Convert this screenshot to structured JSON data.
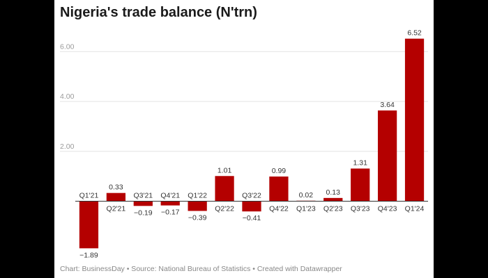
{
  "chart_data": {
    "type": "bar",
    "title": "Nigeria's trade balance (N'trn)",
    "categories": [
      "Q1'21",
      "Q2'21",
      "Q3'21",
      "Q4'21",
      "Q1'22",
      "Q2'22",
      "Q3'22",
      "Q4'22",
      "Q1'23",
      "Q2'23",
      "Q3'23",
      "Q4'23",
      "Q1'24"
    ],
    "values": [
      -1.89,
      0.33,
      -0.19,
      -0.17,
      -0.39,
      1.01,
      -0.41,
      0.99,
      0.02,
      0.13,
      1.31,
      3.64,
      6.52
    ],
    "value_labels": [
      "−1.89",
      "0.33",
      "−0.19",
      "−0.17",
      "−0.39",
      "1.01",
      "−0.41",
      "0.99",
      "0.02",
      "0.13",
      "1.31",
      "3.64",
      "6.52"
    ],
    "y_ticks": [
      2,
      4,
      6
    ],
    "y_tick_labels": [
      "2.00",
      "4.00",
      "6.00"
    ],
    "ylim": [
      -2.3,
      6.9
    ],
    "xlabel": "",
    "ylabel": "",
    "bar_color": "#b40000",
    "grid": true
  },
  "footer": {
    "credit": "Chart: BusinessDay",
    "source": "• Source: National Bureau of Statistics • Created with Datawrapper"
  }
}
